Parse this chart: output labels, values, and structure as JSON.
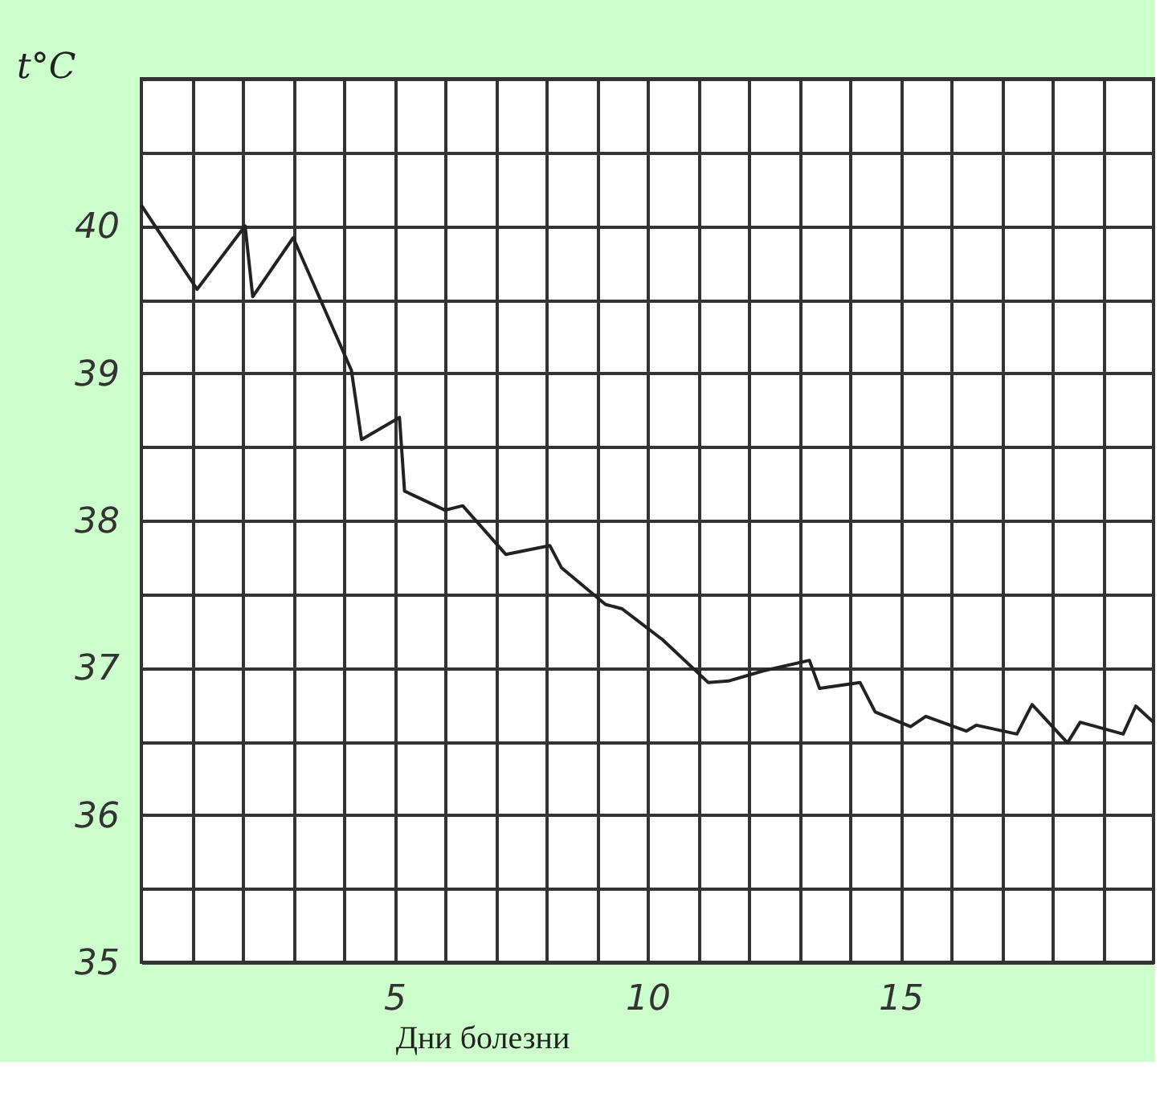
{
  "chart_data": {
    "type": "line",
    "xlabel": "Дни болезни",
    "ylabel": "t°C",
    "x": [
      0,
      1.1,
      2.05,
      2.2,
      3,
      4.15,
      4.35,
      5.1,
      5.2,
      6,
      6.35,
      7.2,
      8.07,
      8.3,
      9.17,
      9.5,
      10.3,
      11.2,
      11.6,
      12.3,
      13.2,
      13.4,
      14.2,
      14.5,
      15.2,
      15.5,
      16.3,
      16.5,
      17.3,
      17.6,
      18.3,
      18.55,
      19.4,
      19.65,
      20
    ],
    "values": [
      40.14,
      39.57,
      40.0,
      39.52,
      39.92,
      39.02,
      38.55,
      38.7,
      38.2,
      38.07,
      38.1,
      37.77,
      37.83,
      37.68,
      37.43,
      37.4,
      37.19,
      36.9,
      36.91,
      36.98,
      37.05,
      36.86,
      36.9,
      36.7,
      36.6,
      36.67,
      36.57,
      36.61,
      36.55,
      36.75,
      36.49,
      36.63,
      36.55,
      36.74,
      36.63
    ],
    "color": "#222222",
    "xlim": [
      0,
      20
    ],
    "xticks": [
      {
        "value": 1,
        "label": null
      },
      {
        "value": 2,
        "label": null
      },
      {
        "value": 3,
        "label": null
      },
      {
        "value": 4,
        "label": null
      },
      5,
      {
        "value": 6,
        "label": null
      },
      {
        "value": 7,
        "label": null
      },
      {
        "value": 8,
        "label": null
      },
      {
        "value": 9,
        "label": null
      },
      10,
      {
        "value": 11,
        "label": null
      },
      {
        "value": 12,
        "label": null
      },
      {
        "value": 13,
        "label": null
      },
      {
        "value": 14,
        "label": null
      },
      15,
      {
        "value": 16,
        "label": null
      },
      {
        "value": 17,
        "label": null
      },
      {
        "value": 18,
        "label": null
      },
      {
        "value": 19,
        "label": null
      }
    ],
    "ylim": [
      35,
      41
    ],
    "yticks": [
      35,
      {
        "value": 35.5,
        "label": null
      },
      36,
      {
        "value": 36.5,
        "label": null
      },
      37,
      {
        "value": 37.5,
        "label": null
      },
      38,
      {
        "value": 38.5,
        "label": null
      },
      39,
      {
        "value": 39.5,
        "label": null
      },
      40,
      {
        "value": 40.5,
        "label": null
      },
      {
        "value": 41,
        "label": null
      }
    ],
    "grid": true,
    "marker": "none",
    "line_style": "solid"
  }
}
